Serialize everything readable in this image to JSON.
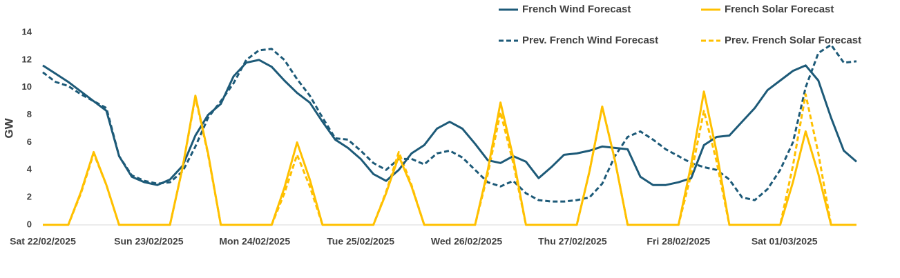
{
  "chart_data": {
    "type": "line",
    "y_label": "GW",
    "x": [
      0,
      3,
      6,
      9,
      12,
      15,
      18,
      21,
      24,
      27,
      30,
      33,
      36,
      39,
      42,
      45,
      48,
      51,
      54,
      57,
      60,
      63,
      66,
      69,
      72,
      75,
      78,
      81,
      84,
      87,
      90,
      93,
      96,
      99,
      102,
      105,
      108,
      111,
      114,
      117,
      120,
      123,
      126,
      129,
      132,
      135,
      138,
      141,
      144,
      147,
      150,
      153,
      156,
      159,
      162,
      165,
      168,
      171,
      174,
      177,
      180,
      183,
      186,
      189,
      192
    ],
    "xlim": [
      0,
      192
    ],
    "xticks": [
      {
        "value": 0,
        "label": "Sat 22/02/2025"
      },
      {
        "value": 25,
        "label": "Sun 23/02/2025"
      },
      {
        "value": 50,
        "label": "Mon 24/02/2025"
      },
      {
        "value": 75,
        "label": "Tue 25/02/2025"
      },
      {
        "value": 100,
        "label": "Wed 26/02/2025"
      },
      {
        "value": 125,
        "label": "Thu 27/02/2025"
      },
      {
        "value": 150,
        "label": "Fri 28/02/2025"
      },
      {
        "value": 175,
        "label": "Sat 01/03/2025"
      }
    ],
    "ylim": [
      0,
      14
    ],
    "yticks": [
      0,
      2,
      4,
      6,
      8,
      10,
      12,
      14
    ],
    "grid": false,
    "legend": "top-right",
    "series": [
      {
        "name": "French Wind Forecast",
        "color": "#1d5a78",
        "style": "solid",
        "values": [
          11.6,
          11.0,
          10.4,
          9.7,
          9.0,
          8.3,
          5.0,
          3.5,
          3.1,
          2.9,
          3.3,
          4.3,
          6.5,
          8.0,
          8.8,
          10.8,
          11.8,
          12.0,
          11.5,
          10.5,
          9.6,
          8.9,
          7.5,
          6.2,
          5.6,
          4.8,
          3.7,
          3.2,
          4.0,
          5.2,
          5.8,
          7.0,
          7.5,
          7.0,
          5.9,
          4.7,
          4.5,
          5.0,
          4.6,
          3.4,
          4.2,
          5.1,
          5.2,
          5.4,
          5.7,
          5.6,
          5.5,
          3.5,
          2.9,
          2.9,
          3.1,
          3.4,
          5.8,
          6.4,
          6.5,
          7.5,
          8.5,
          9.8,
          10.5,
          11.2,
          11.6,
          10.5,
          7.8,
          5.4,
          4.6
        ]
      },
      {
        "name": "French Solar Forecast",
        "color": "#ffc000",
        "style": "solid",
        "values": [
          0,
          0,
          0,
          2.4,
          5.3,
          2.9,
          0,
          0,
          0,
          0,
          0,
          4.2,
          9.4,
          5.2,
          0,
          0,
          0,
          0,
          0,
          2.7,
          6.0,
          3.3,
          0,
          0,
          0,
          0,
          0,
          2.3,
          5.0,
          2.8,
          0,
          0,
          0,
          0,
          0,
          4.0,
          8.9,
          4.9,
          0,
          0,
          0,
          0,
          0,
          3.9,
          8.6,
          4.7,
          0,
          0,
          0,
          0,
          0,
          4.4,
          9.7,
          5.3,
          0,
          0,
          0,
          0,
          0,
          3.1,
          6.8,
          3.7,
          0,
          0,
          0
        ]
      },
      {
        "name": "Prev. French Wind Forecast",
        "color": "#1d5a78",
        "style": "dashed",
        "values": [
          11.1,
          10.4,
          10.1,
          9.5,
          9.0,
          8.5,
          5.0,
          3.6,
          3.2,
          3.0,
          3.1,
          3.9,
          5.7,
          7.8,
          9.0,
          10.3,
          12.0,
          12.7,
          12.8,
          12.0,
          10.6,
          9.4,
          7.8,
          6.3,
          6.2,
          5.4,
          4.5,
          4.0,
          4.8,
          4.8,
          4.4,
          5.2,
          5.4,
          4.9,
          4.0,
          3.1,
          2.8,
          3.2,
          2.3,
          1.8,
          1.7,
          1.7,
          1.8,
          2.0,
          3.0,
          5.0,
          6.4,
          6.8,
          6.2,
          5.5,
          5.0,
          4.5,
          4.2,
          4.0,
          3.3,
          2.0,
          1.8,
          2.6,
          4.0,
          6.0,
          10.0,
          12.5,
          13.1,
          11.8,
          11.9
        ]
      },
      {
        "name": "Prev. French Solar Forecast",
        "color": "#ffc000",
        "style": "dashed",
        "values": [
          0,
          0,
          0,
          2.3,
          5.2,
          2.9,
          0,
          0,
          0,
          0,
          0,
          4.2,
          9.3,
          5.1,
          0,
          0,
          0,
          0,
          0,
          2.3,
          5.1,
          2.8,
          0,
          0,
          0,
          0,
          0,
          2.4,
          5.3,
          2.9,
          0,
          0,
          0,
          0,
          0,
          3.7,
          8.2,
          4.5,
          0,
          0,
          0,
          0,
          0,
          3.9,
          8.6,
          4.7,
          0,
          0,
          0,
          0,
          0,
          3.7,
          8.3,
          4.6,
          0,
          0,
          0,
          0,
          0,
          4.3,
          9.5,
          5.2,
          0,
          0,
          0
        ]
      }
    ]
  }
}
